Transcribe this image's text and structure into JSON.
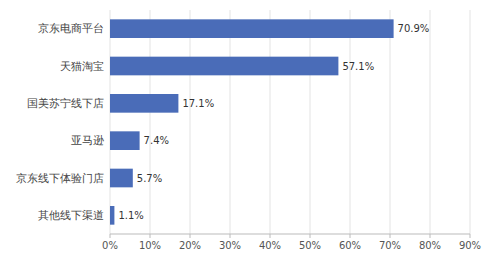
{
  "chart_data": {
    "type": "bar",
    "orientation": "horizontal",
    "categories": [
      "其他线下渠道",
      "京东线下体验门店",
      "亚马逊",
      "国美苏宁线下店",
      "天猫淘宝",
      "京东电商平台"
    ],
    "values": [
      1.1,
      5.7,
      7.4,
      17.1,
      57.1,
      70.9
    ],
    "value_labels": [
      "1.1%",
      "5.7%",
      "7.4%",
      "17.1%",
      "57.1%",
      "70.9%"
    ],
    "data_labels": true,
    "color": "#4a6cb8",
    "xlim": [
      0,
      90
    ],
    "xticks": [
      {
        "value": 0,
        "label": "0%"
      },
      {
        "value": 10,
        "label": "10%"
      },
      {
        "value": 20,
        "label": "20%"
      },
      {
        "value": 30,
        "label": "30%"
      },
      {
        "value": 40,
        "label": "40%"
      },
      {
        "value": 50,
        "label": "50%"
      },
      {
        "value": 60,
        "label": "60%"
      },
      {
        "value": 70,
        "label": "70%"
      },
      {
        "value": 80,
        "label": "80%"
      },
      {
        "value": 90,
        "label": "90%"
      }
    ],
    "grid": true
  }
}
